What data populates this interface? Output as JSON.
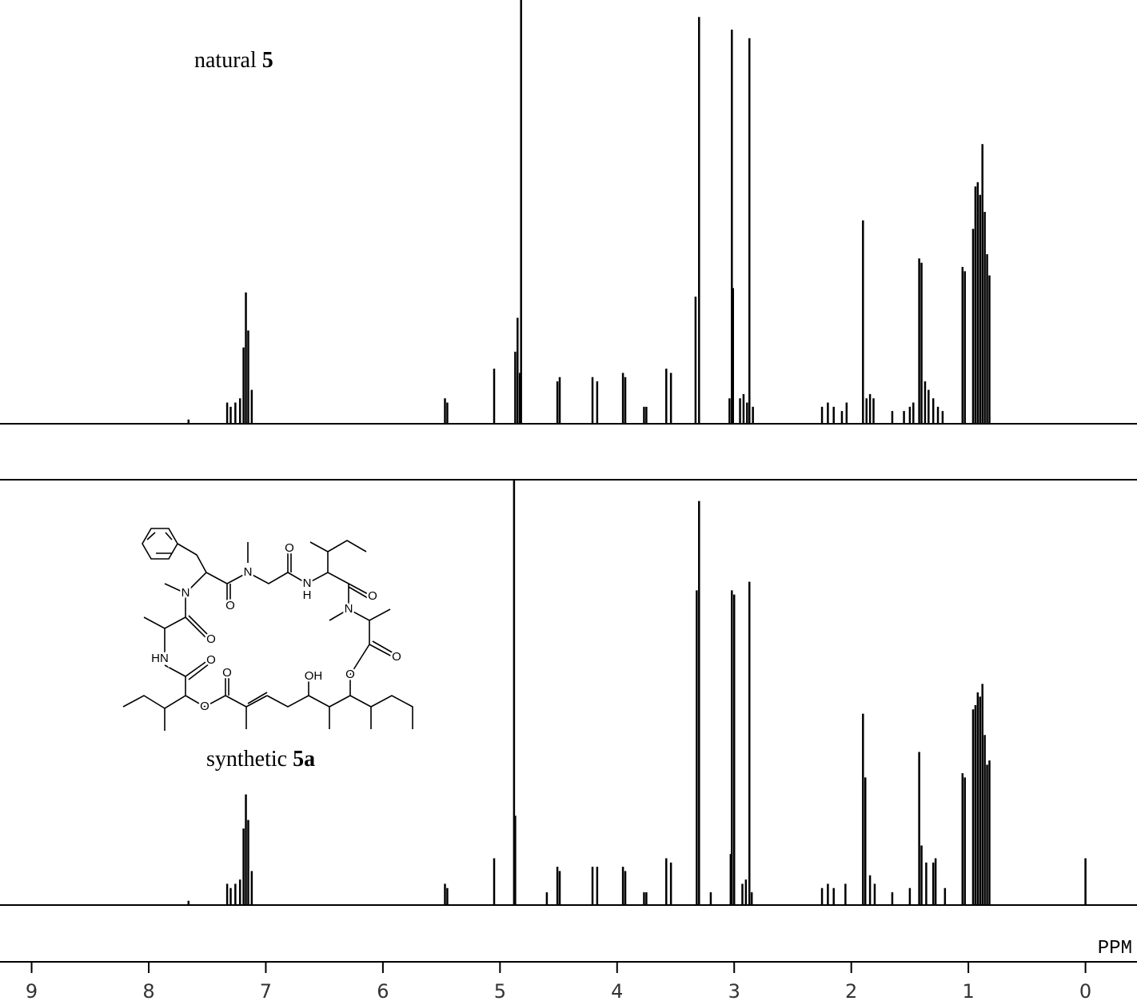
{
  "chart_data": {
    "type": "stem",
    "color": "#000000",
    "xlabel": "PPM",
    "xlim": [
      9.27,
      -0.44
    ],
    "xticks": [
      9,
      8,
      7,
      6,
      5,
      4,
      3,
      2,
      1,
      0
    ],
    "series": [
      {
        "name": [
          "natural",
          "5"
        ],
        "ylim": [
          0,
          100
        ],
        "x": [
          7.66,
          7.33,
          7.3,
          7.26,
          7.22,
          7.19,
          7.17,
          7.15,
          7.12,
          5.47,
          5.45,
          5.05,
          4.87,
          4.85,
          4.83,
          4.82,
          4.51,
          4.49,
          4.21,
          4.17,
          3.95,
          3.93,
          3.77,
          3.75,
          3.58,
          3.54,
          3.33,
          3.3,
          3.04,
          3.02,
          3.01,
          2.95,
          2.92,
          2.89,
          2.87,
          2.84,
          2.25,
          2.2,
          2.15,
          2.08,
          2.04,
          1.9,
          1.87,
          1.84,
          1.81,
          1.65,
          1.55,
          1.5,
          1.47,
          1.42,
          1.4,
          1.37,
          1.34,
          1.3,
          1.26,
          1.22,
          1.05,
          1.03,
          0.96,
          0.94,
          0.92,
          0.9,
          0.88,
          0.86,
          0.84,
          0.82
        ],
        "values": [
          1,
          5,
          4,
          5,
          6,
          18,
          31,
          22,
          8,
          6,
          5,
          13,
          17,
          25,
          12,
          100,
          10,
          11,
          11,
          10,
          12,
          11,
          4,
          4,
          13,
          12,
          30,
          96,
          6,
          93,
          32,
          6,
          7,
          5,
          91,
          4,
          4,
          5,
          4,
          3,
          5,
          48,
          6,
          7,
          6,
          3,
          3,
          4,
          5,
          39,
          38,
          10,
          8,
          6,
          4,
          3,
          37,
          36,
          46,
          56,
          57,
          54,
          66,
          50,
          40,
          35
        ]
      },
      {
        "name": [
          "synthetic",
          "5a"
        ],
        "ylim": [
          0,
          100
        ],
        "x": [
          7.66,
          7.33,
          7.3,
          7.26,
          7.22,
          7.19,
          7.17,
          7.15,
          7.12,
          5.47,
          5.45,
          5.05,
          4.88,
          4.87,
          4.6,
          4.51,
          4.49,
          4.21,
          4.17,
          3.95,
          3.93,
          3.77,
          3.75,
          3.58,
          3.54,
          3.32,
          3.3,
          3.2,
          3.03,
          3.02,
          3.0,
          2.93,
          2.9,
          2.87,
          2.85,
          2.25,
          2.2,
          2.15,
          2.05,
          1.9,
          1.88,
          1.84,
          1.8,
          1.65,
          1.5,
          1.42,
          1.4,
          1.36,
          1.3,
          1.28,
          1.2,
          1.05,
          1.03,
          0.96,
          0.94,
          0.92,
          0.9,
          0.88,
          0.86,
          0.84,
          0.82,
          0.0
        ],
        "values": [
          1,
          5,
          4,
          5,
          6,
          18,
          26,
          20,
          8,
          5,
          4,
          11,
          100,
          21,
          3,
          9,
          8,
          9,
          9,
          9,
          8,
          3,
          3,
          11,
          10,
          74,
          95,
          3,
          12,
          74,
          73,
          5,
          6,
          76,
          3,
          4,
          5,
          4,
          5,
          45,
          30,
          7,
          5,
          3,
          4,
          36,
          14,
          10,
          10,
          11,
          4,
          31,
          30,
          46,
          47,
          50,
          49,
          52,
          40,
          33,
          34,
          11
        ]
      }
    ],
    "structure_labels": [
      "N",
      "O",
      "N",
      "O",
      "N",
      "H",
      "O",
      "N",
      "O",
      "HN",
      "O",
      "O",
      "OH",
      "O",
      "O",
      "O"
    ]
  }
}
